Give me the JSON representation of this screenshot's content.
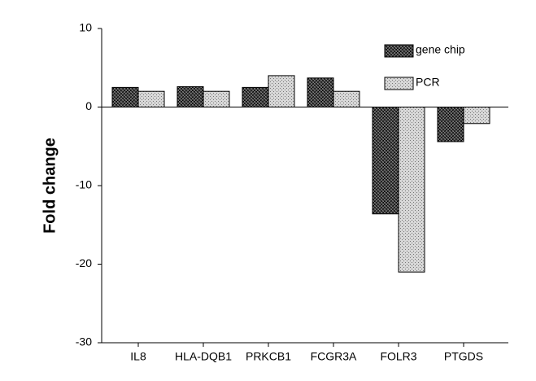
{
  "chart_data": {
    "type": "bar",
    "y_label": "Fold change",
    "categories": [
      "IL8",
      "HLA-DQB1",
      "PRKCB1",
      "FCGR3A",
      "FOLR3",
      "PTGDS"
    ],
    "series": [
      {
        "name": "gene chip",
        "color": "#444444",
        "values": [
          2.5,
          2.6,
          2.5,
          3.7,
          -13.6,
          -4.4
        ]
      },
      {
        "name": "PCR",
        "color": "#d8d8d8",
        "values": [
          2.0,
          2.0,
          4.0,
          2.0,
          -21.0,
          -2.1
        ]
      }
    ],
    "ylim": [
      -30,
      10
    ],
    "yticks": [
      -30,
      -20,
      -10,
      0,
      10
    ],
    "grid": false,
    "legend": "upper right"
  }
}
